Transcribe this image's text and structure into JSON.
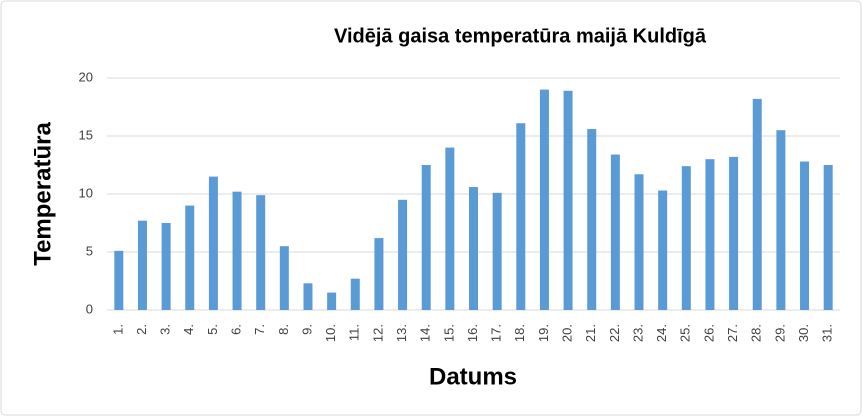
{
  "chart_data": {
    "type": "bar",
    "title": "Vidējā gaisa temperatūra maijā Kuldīgā",
    "x_label": "Datums",
    "y_label": "Temperatūra",
    "categories": [
      "1.",
      "2.",
      "3.",
      "4.",
      "5.",
      "6.",
      "7.",
      "8.",
      "9.",
      "10.",
      "11.",
      "12.",
      "13.",
      "14.",
      "15.",
      "16.",
      "17.",
      "18.",
      "19.",
      "20.",
      "21.",
      "22.",
      "23.",
      "24.",
      "25.",
      "26.",
      "27.",
      "28.",
      "29.",
      "30.",
      "31."
    ],
    "values": [
      5.1,
      7.7,
      7.5,
      9.0,
      11.5,
      10.2,
      9.9,
      5.5,
      2.3,
      1.5,
      2.7,
      6.2,
      9.5,
      12.5,
      14.0,
      10.6,
      10.1,
      16.1,
      19.0,
      18.9,
      15.6,
      13.4,
      11.7,
      10.3,
      12.4,
      13.0,
      13.2,
      18.2,
      15.5,
      12.8,
      12.5
    ],
    "color": "#5b9bd5",
    "ylim": [
      0,
      20
    ],
    "yticks": [
      0,
      5,
      10,
      15,
      20
    ],
    "grid": true
  }
}
